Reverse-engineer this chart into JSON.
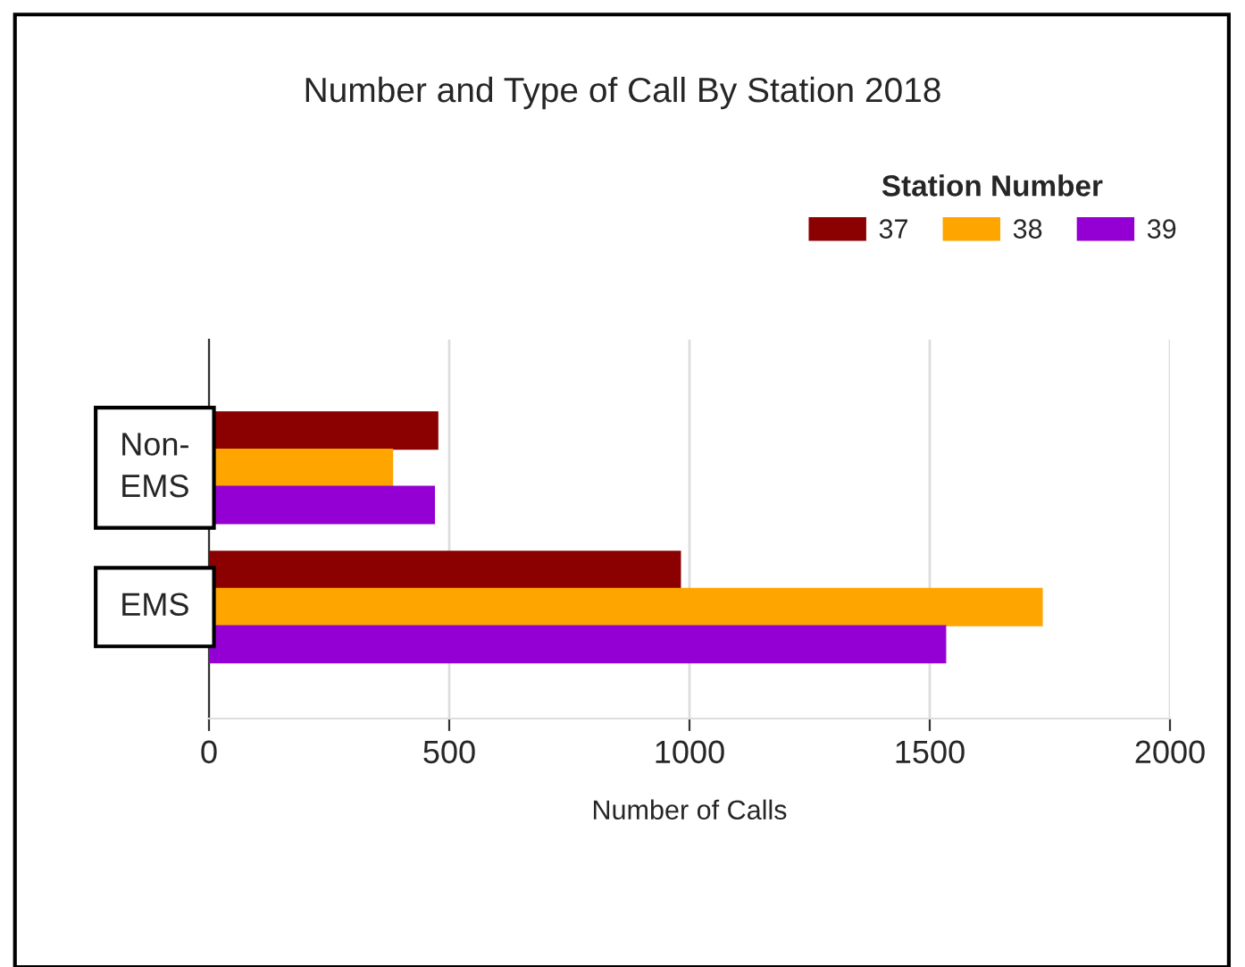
{
  "chart_data": {
    "type": "bar",
    "orientation": "horizontal",
    "title": "Number and Type of Call By Station 2018",
    "xlabel": "Number of Calls",
    "legend_title": "Station Number",
    "legend": "top right",
    "categories": [
      "Non-EMS",
      "EMS"
    ],
    "series": [
      {
        "name": "37",
        "color": "#8b0000",
        "values": [
          476,
          981
        ]
      },
      {
        "name": "38",
        "color": "#ffa500",
        "values": [
          382,
          1734
        ]
      },
      {
        "name": "39",
        "color": "#9400d3",
        "values": [
          469,
          1533
        ]
      }
    ],
    "xlim": [
      0,
      2000
    ],
    "xticks": [
      0,
      500,
      1000,
      1500,
      2000
    ],
    "grid": "x"
  }
}
